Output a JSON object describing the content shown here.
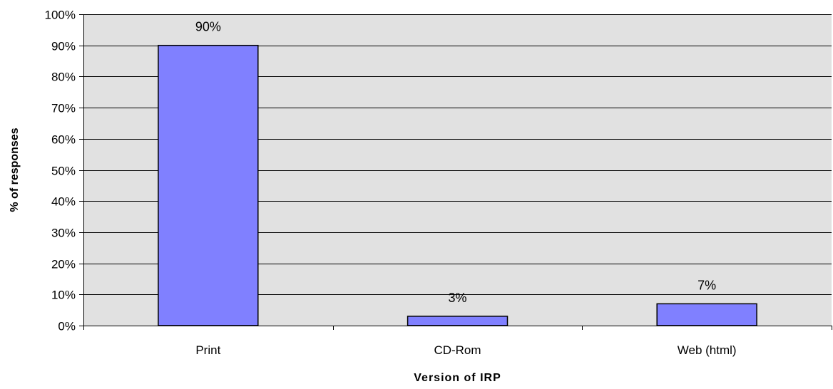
{
  "chart_data": {
    "type": "bar",
    "title": "",
    "xlabel": "Version of IRP",
    "ylabel": "% of responses",
    "categories": [
      "Print",
      "CD-Rom",
      "Web (html)"
    ],
    "values": [
      90,
      3,
      7
    ],
    "data_labels": [
      "90%",
      "3%",
      "7%"
    ],
    "ylim": [
      0,
      100
    ],
    "y_ticks": [
      0,
      10,
      20,
      30,
      40,
      50,
      60,
      70,
      80,
      90,
      100
    ],
    "y_tick_labels": [
      "0%",
      "10%",
      "20%",
      "30%",
      "40%",
      "50%",
      "60%",
      "70%",
      "80%",
      "90%",
      "100%"
    ],
    "grid": true,
    "legend": "none",
    "colors": {
      "bar_fill": "#8080ff",
      "bar_stroke": "#000000",
      "plot_background": "#e1e1e1",
      "gridline": "#000000",
      "axis": "#000000"
    }
  }
}
